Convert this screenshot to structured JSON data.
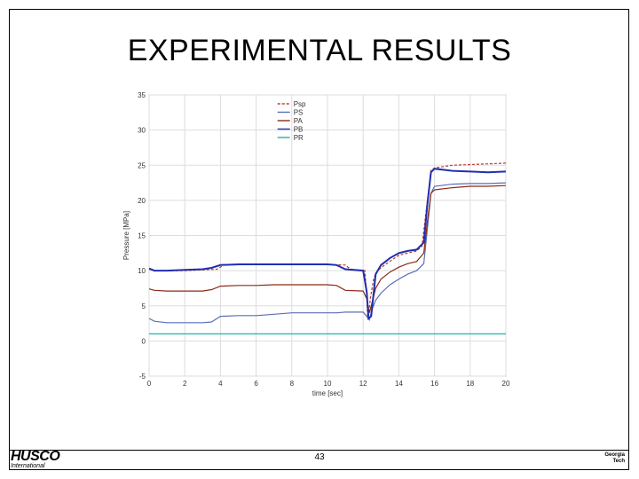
{
  "slide": {
    "title": "EXPERIMENTAL RESULTS",
    "page_number": "43",
    "logo_left_brand": "HUSCO",
    "logo_left_sub": "International",
    "logo_right_line1": "Georgia",
    "logo_right_line2": "Tech"
  },
  "chart_data": {
    "type": "line",
    "title": "",
    "xlabel": "time [sec]",
    "ylabel": "Pressure [MPa]",
    "xlim": [
      0,
      20
    ],
    "ylim": [
      -5,
      35
    ],
    "xticks": [
      0,
      2,
      4,
      6,
      8,
      10,
      12,
      14,
      16,
      18,
      20
    ],
    "yticks": [
      -5,
      0,
      5,
      10,
      15,
      20,
      25,
      30,
      35
    ],
    "grid": true,
    "legend_position": "top-center",
    "series": [
      {
        "name": "Psp",
        "color": "#c0392b",
        "dash": true,
        "x": [
          0,
          0.3,
          2,
          3.8,
          4.2,
          6,
          8,
          10,
          11.0,
          11.3,
          12.1,
          12.2,
          12.25,
          12.3,
          12.4,
          12.6,
          12.8,
          13.2,
          13.6,
          14.0,
          14.5,
          15.0,
          15.3,
          15.6,
          15.8,
          16.0,
          16.5,
          17.0,
          18.0,
          19.0,
          20.0
        ],
        "y": [
          10.2,
          10.0,
          10.0,
          10.2,
          10.8,
          10.9,
          10.9,
          10.9,
          10.8,
          10.2,
          10.0,
          6.5,
          3.5,
          3.4,
          6.0,
          9.0,
          10.0,
          10.8,
          11.5,
          12.2,
          12.5,
          12.8,
          13.5,
          20.0,
          24.3,
          24.6,
          24.8,
          25.0,
          25.1,
          25.2,
          25.3
        ]
      },
      {
        "name": "PS",
        "color": "#5a6fb5",
        "dash": false,
        "x": [
          0,
          0.3,
          1,
          2,
          3,
          3.5,
          4,
          5,
          6,
          7,
          8,
          9,
          10,
          10.5,
          11.0,
          12.0,
          12.2,
          12.35,
          12.5,
          12.7,
          13.0,
          13.5,
          14.0,
          14.5,
          15.0,
          15.4,
          15.6,
          15.8,
          16.0,
          17.0,
          18.0,
          19.0,
          20.0
        ],
        "y": [
          3.2,
          2.8,
          2.6,
          2.6,
          2.6,
          2.7,
          3.5,
          3.6,
          3.6,
          3.8,
          4.0,
          4.0,
          4.0,
          4.0,
          4.1,
          4.1,
          3.5,
          3.0,
          4.5,
          5.8,
          6.8,
          8.0,
          8.8,
          9.5,
          10.0,
          11.0,
          16.0,
          21.0,
          22.0,
          22.3,
          22.4,
          22.4,
          22.5
        ]
      },
      {
        "name": "PA",
        "color": "#8b2a14",
        "dash": false,
        "x": [
          0,
          0.3,
          1,
          2,
          3,
          3.5,
          4,
          5,
          6,
          7,
          8,
          9,
          10,
          10.5,
          11.0,
          12.0,
          12.2,
          12.35,
          12.5,
          12.7,
          13.0,
          13.5,
          14.0,
          14.5,
          15.0,
          15.4,
          15.6,
          15.8,
          16.0,
          17.0,
          18.0,
          19.0,
          20.0
        ],
        "y": [
          7.4,
          7.2,
          7.1,
          7.1,
          7.1,
          7.3,
          7.8,
          7.9,
          7.9,
          8.0,
          8.0,
          8.0,
          8.0,
          7.9,
          7.2,
          7.1,
          6.0,
          4.0,
          5.5,
          7.5,
          8.8,
          9.8,
          10.5,
          11.0,
          11.3,
          12.5,
          17.0,
          21.0,
          21.5,
          21.8,
          22.0,
          22.0,
          22.1
        ]
      },
      {
        "name": "PB",
        "color": "#1f2fb0",
        "dash": false,
        "x": [
          0,
          0.3,
          1,
          2,
          3,
          3.5,
          4,
          5,
          6,
          7,
          8,
          9,
          10,
          10.5,
          11.0,
          12.0,
          12.2,
          12.3,
          12.45,
          12.7,
          13.0,
          13.5,
          14.0,
          14.5,
          15.0,
          15.4,
          15.6,
          15.8,
          16.0,
          17.0,
          18.0,
          19.0,
          20.0
        ],
        "y": [
          10.3,
          10.0,
          10.0,
          10.1,
          10.2,
          10.4,
          10.8,
          10.9,
          10.9,
          10.9,
          10.9,
          10.9,
          10.9,
          10.8,
          10.2,
          10.0,
          7.0,
          3.2,
          3.5,
          9.5,
          10.8,
          11.8,
          12.5,
          12.8,
          13.0,
          14.0,
          19.5,
          24.0,
          24.5,
          24.2,
          24.1,
          24.0,
          24.1
        ]
      },
      {
        "name": "PR",
        "color": "#1fb5a8",
        "dash": false,
        "x": [
          0,
          2,
          4,
          6,
          8,
          10,
          12,
          14,
          16,
          18,
          20
        ],
        "y": [
          1.0,
          1.0,
          1.0,
          1.0,
          1.0,
          1.0,
          1.0,
          1.0,
          1.0,
          1.0,
          1.0
        ]
      }
    ]
  }
}
